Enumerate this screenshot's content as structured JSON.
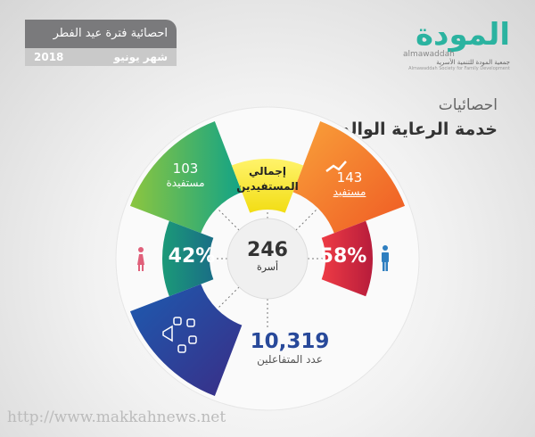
{
  "header": {
    "title": "احصائية فترة عيد الفطر",
    "month": "شهر يونيو",
    "year": "2018"
  },
  "logo": {
    "arabic": "المودة",
    "latin": "almawaddah",
    "org_ar": "جمعية المودة للتنمية الأسرية",
    "org_en": "Almawaddah Society for Family Development"
  },
  "section": {
    "subtitle": "احصائيات",
    "title": "خدمة الرعاية الوالدية"
  },
  "stats": {
    "female": {
      "value": "103",
      "label": "مستفيدة",
      "color": "#3cae5a"
    },
    "male": {
      "value": "143",
      "label": "مستفيد",
      "color": "#f07a2c"
    },
    "total_label": "إجمالي المستفيدين",
    "female_pct": {
      "value": "42%",
      "color": "#14867f"
    },
    "male_pct": {
      "value": "58%",
      "color": "#d7253f"
    },
    "families": {
      "value": "246",
      "label": "أسرة"
    },
    "interactions": {
      "value": "10,319",
      "label": "عدد المتفاعلين",
      "color": "#28499a"
    }
  },
  "icons": {
    "male": "male-person-icon",
    "female": "female-person-icon",
    "trend": "trend-up-icon",
    "social": "social-media-megaphone-icon"
  },
  "watermark": "http://www.makkahnews.net"
}
